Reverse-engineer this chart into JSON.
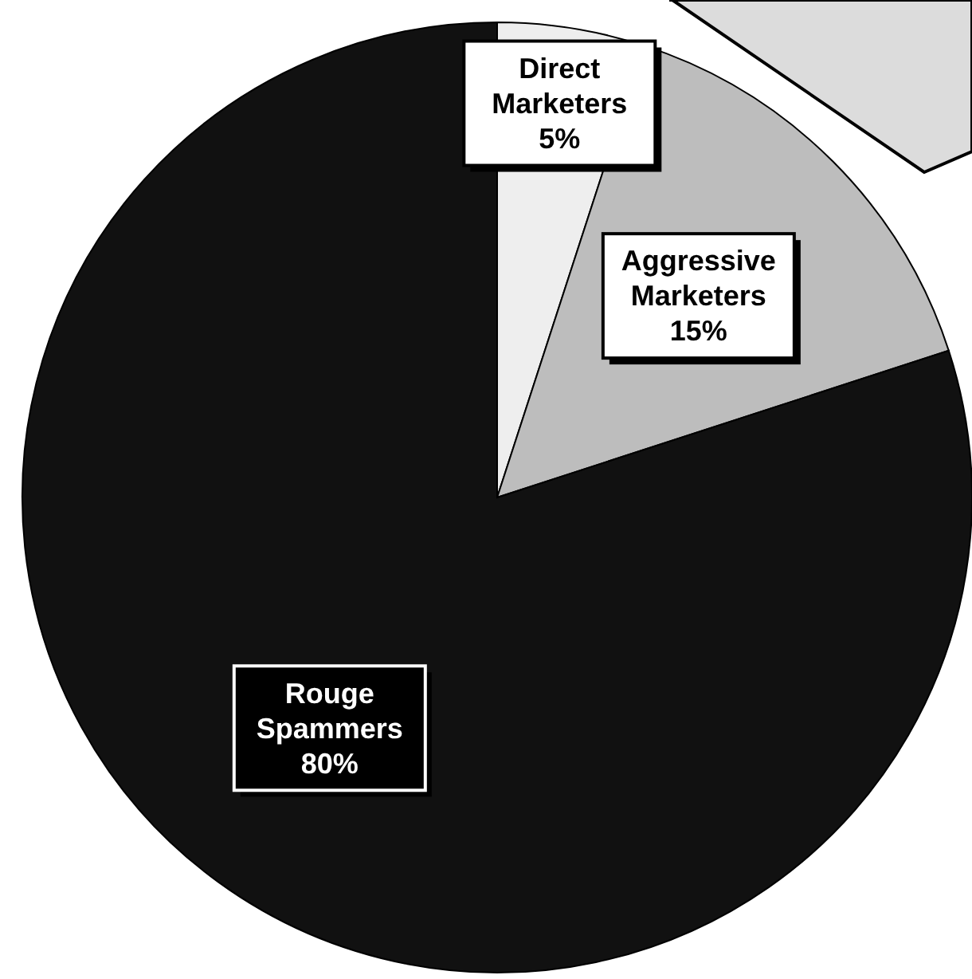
{
  "chart_data": {
    "type": "pie",
    "categories": [
      "Direct Marketers",
      "Aggressive Marketers",
      "Rouge Spammers"
    ],
    "values": [
      5,
      15,
      80
    ],
    "colors": [
      "#eeeeee",
      "#bdbdbd",
      "#111111"
    ],
    "value_labels": [
      "5%",
      "15%",
      "80%"
    ]
  }
}
